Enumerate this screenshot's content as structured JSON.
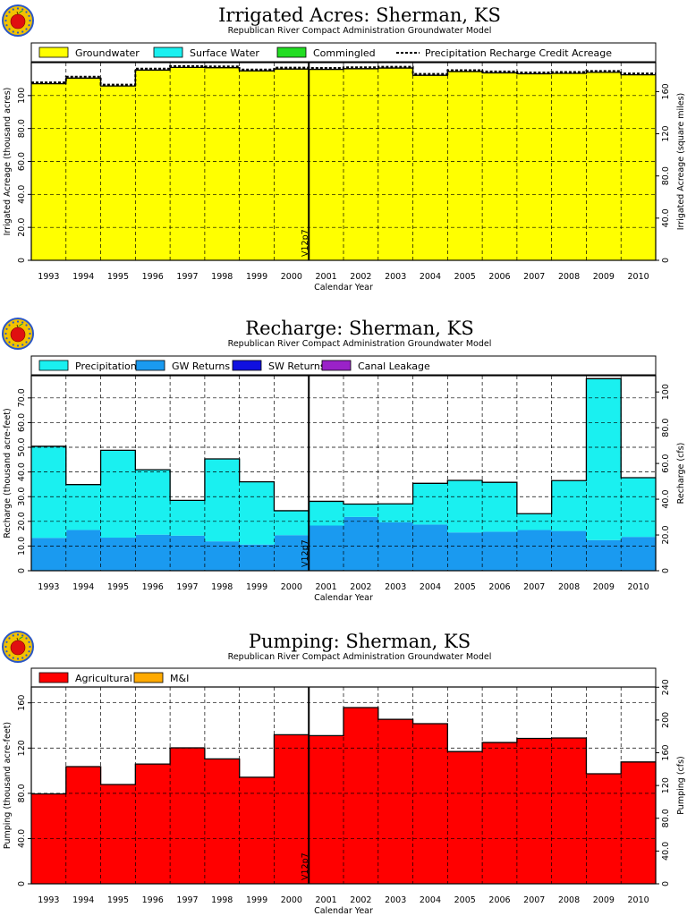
{
  "colors": {
    "groundwater_acres": "#ffff00",
    "surface_water": "#1af0f0",
    "commingled": "#22dd22",
    "precipitation": "#1af0f0",
    "gw_returns": "#1a9af0",
    "sw_returns": "#1010e0",
    "canal_leakage": "#9a22c8",
    "agricultural": "#ff0000",
    "mi": "#ffaa00"
  },
  "icons": [
    "apple-logo-icon"
  ],
  "chart_data": [
    {
      "type": "area",
      "title": "Irrigated Acres: Sherman, KS",
      "subtitle": "Republican River Compact Administration Groundwater Model",
      "xlabel": "Calendar Year",
      "ylabel": "Irrigated Acreage (thousand acres)",
      "y2label": "Irrigated Acreage (square miles)",
      "marker_label": "V12p7",
      "categories": [
        "1993",
        "1994",
        "1995",
        "1996",
        "1997",
        "1998",
        "1999",
        "2000",
        "2001",
        "2002",
        "2003",
        "2004",
        "2005",
        "2006",
        "2007",
        "2008",
        "2009",
        "2010"
      ],
      "ylim": [
        0,
        120
      ],
      "yticks": [
        0,
        20,
        40,
        60,
        80,
        100
      ],
      "ytick_labels": [
        "0",
        "20.0",
        "40.0",
        "60.0",
        "80.0",
        "100"
      ],
      "y2lim": [
        0,
        187.5
      ],
      "y2ticks": [
        0,
        40,
        80,
        120,
        160
      ],
      "y2tick_labels": [
        "0",
        "40.0",
        "80.0",
        "120",
        "160"
      ],
      "legend": [
        {
          "name": "Groundwater",
          "swatch": "#ffff00",
          "style": "box"
        },
        {
          "name": "Surface Water",
          "swatch": "#1af0f0",
          "style": "box"
        },
        {
          "name": "Commingled",
          "swatch": "#22dd22",
          "style": "box"
        },
        {
          "name": "Precipitation Recharge Credit Acreage",
          "style": "dash"
        }
      ],
      "series": [
        {
          "name": "Groundwater",
          "color": "#ffff00",
          "values": [
            107.2,
            110.6,
            105.8,
            115.5,
            117.1,
            116.9,
            115.0,
            116.1,
            115.9,
            116.3,
            116.7,
            112.3,
            114.6,
            113.8,
            113.2,
            113.5,
            114.1,
            112.6
          ]
        },
        {
          "name": "Surface Water",
          "color": "#1af0f0",
          "values": [
            0,
            0,
            0,
            0,
            0,
            0,
            0,
            0,
            0,
            0,
            0,
            0,
            0,
            0,
            0,
            0,
            0,
            0
          ]
        },
        {
          "name": "Commingled",
          "color": "#22dd22",
          "values": [
            0,
            0,
            0,
            0,
            0,
            0,
            0,
            0,
            0,
            0,
            0,
            0,
            0,
            0,
            0,
            0,
            0,
            0
          ]
        }
      ],
      "dashed_series": {
        "name": "Precipitation Recharge Credit Acreage",
        "values": [
          107.2,
          110.6,
          105.8,
          115.5,
          117.1,
          116.9,
          115.0,
          116.1,
          115.9,
          116.3,
          116.7,
          112.3,
          114.6,
          113.8,
          113.2,
          113.5,
          114.1,
          112.6
        ]
      }
    },
    {
      "type": "area",
      "title": "Recharge: Sherman, KS",
      "subtitle": "Republican River Compact Administration Groundwater Model",
      "xlabel": "Calendar Year",
      "ylabel": "Recharge (thousand acre-feet)",
      "y2label": "Recharge (cfs)",
      "marker_label": "V12p7",
      "categories": [
        "1993",
        "1994",
        "1995",
        "1996",
        "1997",
        "1998",
        "1999",
        "2000",
        "2001",
        "2002",
        "2003",
        "2004",
        "2005",
        "2006",
        "2007",
        "2008",
        "2009",
        "2010"
      ],
      "ylim": [
        0,
        79
      ],
      "yticks": [
        0,
        10,
        20,
        30,
        40,
        50,
        60,
        70
      ],
      "ytick_labels": [
        "0",
        "10.0",
        "20.0",
        "30.0",
        "40.0",
        "50.0",
        "60.0",
        "70.0"
      ],
      "y2lim": [
        0,
        109.1
      ],
      "y2ticks": [
        0,
        20,
        40,
        60,
        80,
        100
      ],
      "y2tick_labels": [
        "0",
        "20.0",
        "40.0",
        "60.0",
        "80.0",
        "100"
      ],
      "legend": [
        {
          "name": "Precipitation",
          "swatch": "#1af0f0",
          "style": "box"
        },
        {
          "name": "GW Returns",
          "swatch": "#1a9af0",
          "style": "box"
        },
        {
          "name": "SW Returns",
          "swatch": "#1010e0",
          "style": "box"
        },
        {
          "name": "Canal Leakage",
          "swatch": "#9a22c8",
          "style": "box"
        }
      ],
      "series": [
        {
          "name": "GW Returns",
          "color": "#1a9af0",
          "values": [
            13.3,
            16.5,
            13.4,
            14.6,
            14.2,
            11.9,
            10.6,
            14.4,
            18.3,
            21.8,
            19.6,
            18.7,
            15.5,
            15.8,
            16.5,
            16.1,
            12.4,
            13.7
          ]
        },
        {
          "name": "SW Returns",
          "color": "#1010e0",
          "values": [
            0,
            0,
            0,
            0,
            0,
            0,
            0,
            0,
            0,
            0,
            0,
            0,
            0,
            0,
            0,
            0,
            0,
            0
          ]
        },
        {
          "name": "Canal Leakage",
          "color": "#9a22c8",
          "values": [
            0,
            0,
            0,
            0,
            0,
            0,
            0,
            0,
            0,
            0,
            0,
            0,
            0,
            0,
            0,
            0,
            0,
            0
          ]
        },
        {
          "name": "Precipitation",
          "color": "#1af0f0",
          "values": [
            37.1,
            18.4,
            35.4,
            26.3,
            14.3,
            33.4,
            25.4,
            9.9,
            9.8,
            5.2,
            7.5,
            16.7,
            21.1,
            20.0,
            6.6,
            20.4,
            65.4,
            24.0
          ]
        }
      ]
    },
    {
      "type": "area",
      "title": "Pumping: Sherman, KS",
      "subtitle": "Republican River Compact Administration Groundwater Model",
      "xlabel": "Calendar Year",
      "ylabel": "Pumping (thousand acre-feet)",
      "y2label": "Pumping (cfs)",
      "marker_label": "V12p7",
      "categories": [
        "1993",
        "1994",
        "1995",
        "1996",
        "1997",
        "1998",
        "1999",
        "2000",
        "2001",
        "2002",
        "2003",
        "2004",
        "2005",
        "2006",
        "2007",
        "2008",
        "2009",
        "2010"
      ],
      "ylim": [
        0,
        174
      ],
      "yticks": [
        0,
        40,
        80,
        120,
        160
      ],
      "ytick_labels": [
        "0",
        "40.0",
        "80.0",
        "120",
        "160"
      ],
      "y2lim": [
        0,
        240.3
      ],
      "y2ticks": [
        0,
        40,
        80,
        120,
        160,
        200,
        240
      ],
      "y2tick_labels": [
        "0",
        "40.0",
        "80.0",
        "120",
        "160",
        "200",
        "240"
      ],
      "legend": [
        {
          "name": "Agricultural",
          "swatch": "#ff0000",
          "style": "box"
        },
        {
          "name": "M&I",
          "swatch": "#ffaa00",
          "style": "box"
        }
      ],
      "series": [
        {
          "name": "Agricultural",
          "color": "#ff0000",
          "values": [
            79.5,
            103.6,
            87.8,
            105.9,
            120.2,
            110.4,
            94.2,
            131.8,
            131.0,
            155.8,
            145.4,
            141.6,
            116.9,
            124.9,
            128.5,
            128.9,
            97.3,
            107.7
          ]
        },
        {
          "name": "M&I",
          "color": "#ffaa00",
          "values": [
            0,
            0,
            0,
            0,
            0,
            0,
            0,
            0,
            0,
            0,
            0,
            0,
            0,
            0,
            0,
            0,
            0,
            0
          ]
        }
      ]
    }
  ]
}
